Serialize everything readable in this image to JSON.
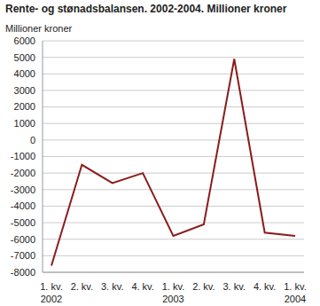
{
  "chart_data": {
    "type": "line",
    "title": "Rente- og stønadsbalansen. 2002-2004. Millioner kroner",
    "y_label": "Millioner kroner",
    "categories": [
      "1. kv.\n2002",
      "2. kv.",
      "3. kv.",
      "4. kv.",
      "1. kv.\n2003",
      "2. kv.",
      "3. kv.",
      "4. kv.",
      "1. kv.\n2004"
    ],
    "values": [
      -7600,
      -1500,
      -2600,
      -2000,
      -5800,
      -5100,
      4900,
      -5600,
      -5800
    ],
    "color": "#8b1c1c",
    "ylim": [
      -8000,
      6000
    ],
    "yticks": [
      -8000,
      -7000,
      -6000,
      -5000,
      -4000,
      -3000,
      -2000,
      -1000,
      0,
      1000,
      2000,
      3000,
      4000,
      5000,
      6000
    ],
    "grid": true
  }
}
